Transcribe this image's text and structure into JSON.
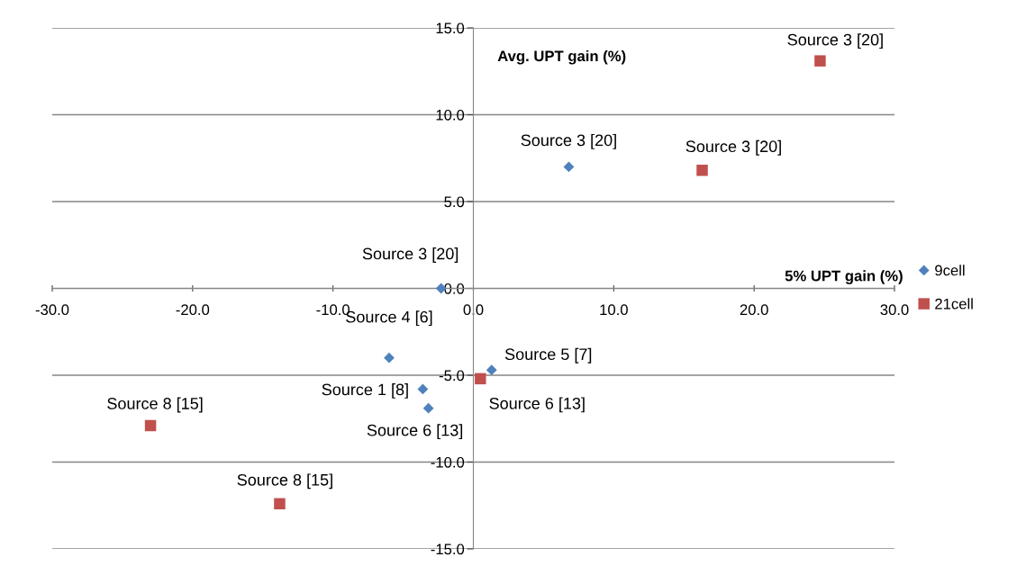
{
  "chart_data": {
    "type": "scatter",
    "xlabel": "5% UPT gain (%)",
    "ylabel": "Avg. UPT gain (%)",
    "xlim": [
      -30,
      30
    ],
    "ylim": [
      -15,
      15
    ],
    "xticks": [
      {
        "value": -30,
        "label": "-30.0"
      },
      {
        "value": -20,
        "label": "-20.0"
      },
      {
        "value": -10,
        "label": "-10.0"
      },
      {
        "value": 0,
        "label": "0.0"
      },
      {
        "value": 10,
        "label": "10.0"
      },
      {
        "value": 20,
        "label": "20.0"
      },
      {
        "value": 30,
        "label": "30.0"
      }
    ],
    "yticks": [
      {
        "value": -15,
        "label": "-15.0"
      },
      {
        "value": -10,
        "label": "-10.0"
      },
      {
        "value": -5,
        "label": "-5.0"
      },
      {
        "value": 0,
        "label": "0.0"
      },
      {
        "value": 5,
        "label": "5.0"
      },
      {
        "value": 10,
        "label": "10.0"
      },
      {
        "value": 15,
        "label": "15.0"
      }
    ],
    "grid": "y",
    "legend": "right",
    "series": [
      {
        "name": "9cell",
        "color": "#4f81bd",
        "marker": "diamond",
        "x": [
          -2.3,
          6.8,
          -6.0,
          -3.6,
          -3.2,
          1.3
        ],
        "values": [
          0.0,
          7.0,
          -4.0,
          -5.8,
          -6.9,
          -4.7
        ]
      },
      {
        "name": "21cell",
        "color": "#c0504d",
        "marker": "square",
        "x": [
          24.7,
          16.3,
          0.5,
          -23.0,
          -13.8
        ],
        "values": [
          13.1,
          6.8,
          -5.2,
          -7.9,
          -12.4
        ]
      }
    ],
    "annotations": [
      {
        "text": "Source 3 [20]",
        "x": -2.3,
        "y": 0.0
      },
      {
        "text": "Source 3 [20]",
        "x": 6.8,
        "y": 7.0
      },
      {
        "text": "Source 4 [6]",
        "x": -6.0,
        "y": -4.0
      },
      {
        "text": "Source 1 [8]",
        "x": -3.6,
        "y": -5.8
      },
      {
        "text": "Source 6 [13]",
        "x": -3.2,
        "y": -6.9
      },
      {
        "text": "Source 5 [7]",
        "x": 1.3,
        "y": -4.7
      },
      {
        "text": "Source 3 [20]",
        "x": 24.7,
        "y": 13.1
      },
      {
        "text": "Source 3 [20]",
        "x": 16.3,
        "y": 6.8
      },
      {
        "text": "Source 6 [13]",
        "x": 0.5,
        "y": -5.2
      },
      {
        "text": "Source 8 [15]",
        "x": -23.0,
        "y": -7.9
      },
      {
        "text": "Source 8 [15]",
        "x": -13.8,
        "y": -12.4
      }
    ]
  }
}
